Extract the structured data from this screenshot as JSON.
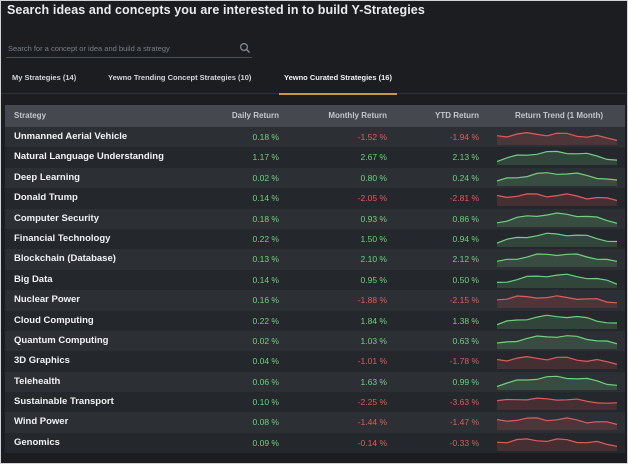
{
  "title": "Search ideas and concepts you are interested in to build Y-Strategies",
  "search": {
    "placeholder": "Search for a concept or idea and build a strategy",
    "icon": "search-icon"
  },
  "tabs": [
    {
      "label": "My Strategies (14)",
      "active": false
    },
    {
      "label": "Yewno Trending Concept Strategies (10)",
      "active": false
    },
    {
      "label": "Yewno Curated Strategies (16)",
      "active": true
    }
  ],
  "table": {
    "headers": {
      "strategy": "Strategy",
      "daily": "Daily Return",
      "monthly": "Monthly Return",
      "ytd": "YTD Return",
      "trend": "Return Trend (1 Month)"
    },
    "rows": [
      {
        "name": "Unmanned Aerial Vehicle",
        "daily": "0.18 %",
        "monthly": "-1.52 %",
        "ytd": "-1.94 %",
        "trend": "negative"
      },
      {
        "name": "Natural Language Understanding",
        "daily": "1.17 %",
        "monthly": "2.67 %",
        "ytd": "2.13 %",
        "trend": "positive"
      },
      {
        "name": "Deep Learning",
        "daily": "0.02 %",
        "monthly": "0.80 %",
        "ytd": "0.24 %",
        "trend": "positive"
      },
      {
        "name": "Donald Trump",
        "daily": "0.14 %",
        "monthly": "-2.05 %",
        "ytd": "-2.81 %",
        "trend": "negative"
      },
      {
        "name": "Computer Security",
        "daily": "0.18 %",
        "monthly": "0.93 %",
        "ytd": "0.86 %",
        "trend": "positive"
      },
      {
        "name": "Financial Technology",
        "daily": "0.22 %",
        "monthly": "1.50 %",
        "ytd": "0.94 %",
        "trend": "positive"
      },
      {
        "name": "Blockchain (Database)",
        "daily": "0.13 %",
        "monthly": "2.10 %",
        "ytd": "2.12 %",
        "trend": "positive"
      },
      {
        "name": "Big Data",
        "daily": "0.14 %",
        "monthly": "0.95 %",
        "ytd": "0.50 %",
        "trend": "positive"
      },
      {
        "name": "Nuclear Power",
        "daily": "0.16 %",
        "monthly": "-1.88 %",
        "ytd": "-2.15 %",
        "trend": "negative"
      },
      {
        "name": "Cloud Computing",
        "daily": "0.22 %",
        "monthly": "1.84 %",
        "ytd": "1.38 %",
        "trend": "positive"
      },
      {
        "name": "Quantum Computing",
        "daily": "0.02 %",
        "monthly": "1.03 %",
        "ytd": "0.63 %",
        "trend": "positive"
      },
      {
        "name": "3D Graphics",
        "daily": "0.04 %",
        "monthly": "-1.01 %",
        "ytd": "-1.78 %",
        "trend": "negative"
      },
      {
        "name": "Telehealth",
        "daily": "0.06 %",
        "monthly": "1.63 %",
        "ytd": "0.99 %",
        "trend": "positive"
      },
      {
        "name": "Sustainable Transport",
        "daily": "0.10 %",
        "monthly": "-2.25 %",
        "ytd": "-3.63 %",
        "trend": "negative"
      },
      {
        "name": "Wind Power",
        "daily": "0.08 %",
        "monthly": "-1.44 %",
        "ytd": "-1.47 %",
        "trend": "negative"
      },
      {
        "name": "Genomics",
        "daily": "0.09 %",
        "monthly": "-0.14 %",
        "ytd": "-0.33 %",
        "trend": "negative"
      }
    ]
  },
  "colors": {
    "background": "#1b1d21",
    "header": "#45484e",
    "positive": "#6fd17d",
    "negative": "#e25b5b",
    "tab_accent": "#c59a3a"
  }
}
